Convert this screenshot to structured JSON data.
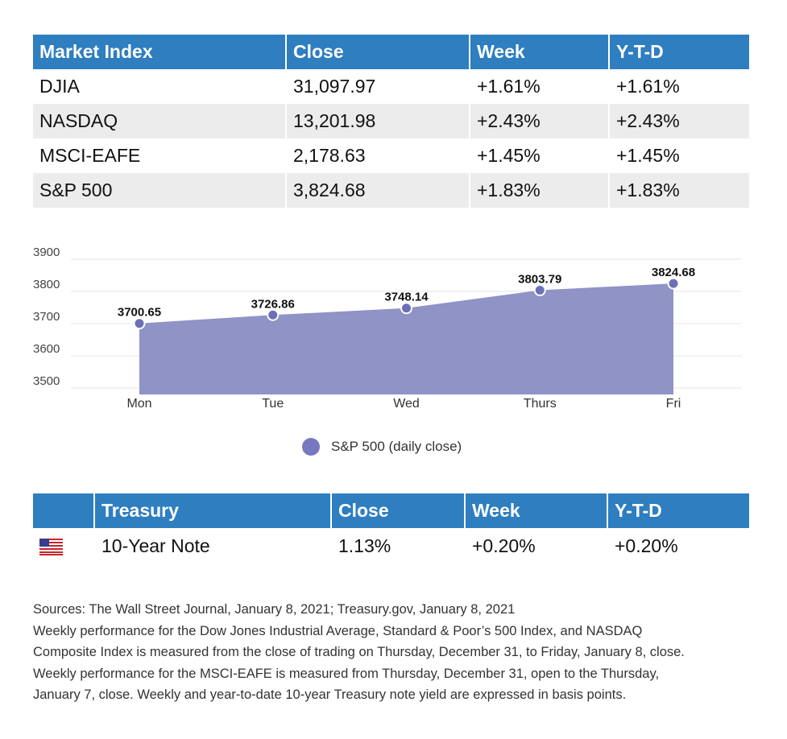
{
  "market_table": {
    "headers": [
      "Market Index",
      "Close",
      "Week",
      "Y-T-D"
    ],
    "rows": [
      [
        "DJIA",
        "31,097.97",
        "+1.61%",
        "+1.61%"
      ],
      [
        "NASDAQ",
        "13,201.98",
        "+2.43%",
        "+2.43%"
      ],
      [
        "MSCI-EAFE",
        "2,178.63",
        "+1.45%",
        "+1.45%"
      ],
      [
        "S&P 500",
        "3,824.68",
        "+1.83%",
        "+1.83%"
      ]
    ]
  },
  "chart_data": {
    "type": "area",
    "categories": [
      "Mon",
      "Tue",
      "Wed",
      "Thurs",
      "Fri"
    ],
    "series": [
      {
        "name": "S&P 500 (daily close)",
        "values": [
          3700.65,
          3726.86,
          3748.14,
          3803.79,
          3824.68
        ],
        "color": "#8f93c6",
        "marker_color": "#6d70b8"
      }
    ],
    "data_labels": [
      "3700.65",
      "3726.86",
      "3748.14",
      "3803.79",
      "3824.68"
    ],
    "y_ticks": [
      "3900",
      "3800",
      "3700",
      "3600",
      "3500"
    ],
    "ylim": [
      3480,
      3900
    ],
    "grid": true,
    "legend_position": "bottom"
  },
  "treasury_table": {
    "headers": [
      "Treasury",
      "Close",
      "Week",
      "Y-T-D"
    ],
    "rows": [
      {
        "icon": "us-flag-icon",
        "name": "10-Year Note",
        "close": "1.13%",
        "week": "+0.20%",
        "ytd": "+0.20%"
      }
    ]
  },
  "notes": [
    "Sources: The Wall Street Journal, January 8, 2021; Treasury.gov, January 8, 2021",
    "Weekly performance for the Dow Jones Industrial Average, Standard & Poor’s 500 Index, and NASDAQ",
    "Composite Index is measured from the close of trading on Thursday, December 31, to Friday, January 8, close.",
    "Weekly performance for the MSCI-EAFE is measured from Thursday, December 31, open to the Thursday,",
    "January 7, close. Weekly and year-to-date 10-year Treasury note yield are expressed in basis points."
  ]
}
